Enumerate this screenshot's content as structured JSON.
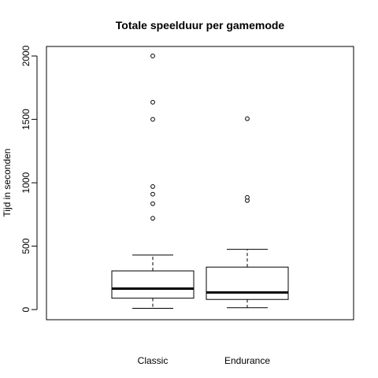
{
  "chart_data": {
    "type": "boxplot",
    "title": "Totale speelduur per gamemode",
    "xlabel": "",
    "ylabel": "Tijd in seconden",
    "categories": [
      "Classic",
      "Endurance"
    ],
    "ylim": [
      -80,
      2075
    ],
    "yticks": [
      0,
      500,
      1000,
      1500,
      2000
    ],
    "grid": false,
    "legend": "none",
    "boxes": [
      {
        "name": "Classic",
        "whisker_low": 10,
        "q1": 90,
        "median": 165,
        "q3": 305,
        "whisker_high": 430,
        "outliers": [
          720,
          835,
          910,
          970,
          1500,
          1635,
          2000
        ]
      },
      {
        "name": "Endurance",
        "whisker_low": 15,
        "q1": 80,
        "median": 135,
        "q3": 335,
        "whisker_high": 475,
        "outliers": [
          860,
          885,
          1505
        ]
      }
    ]
  }
}
